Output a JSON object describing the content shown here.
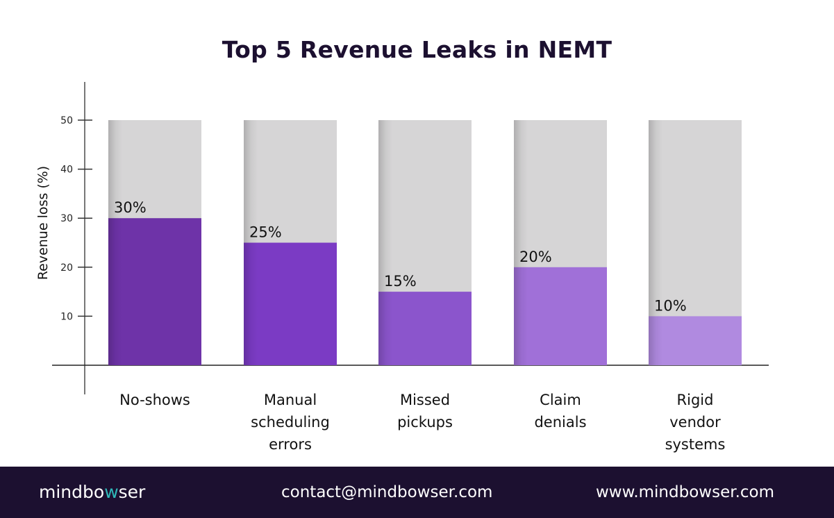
{
  "chart_data": {
    "type": "bar",
    "title": "Top 5 Revenue Leaks in NEMT",
    "xlabel": "",
    "ylabel": "Revenue loss (%)",
    "ylim": [
      0,
      50
    ],
    "yticks": [
      10,
      20,
      30,
      40,
      50
    ],
    "grid": false,
    "categories": [
      [
        "No-shows"
      ],
      [
        "Manual",
        "scheduling",
        "errors"
      ],
      [
        "Missed",
        "pickups"
      ],
      [
        "Claim",
        "denials"
      ],
      [
        "Rigid",
        "vendor",
        "systems"
      ]
    ],
    "values": [
      30,
      25,
      15,
      20,
      10
    ],
    "data_labels": [
      "30%",
      "25%",
      "15%",
      "20%",
      "10%"
    ],
    "bar_colors": [
      "#6e33a8",
      "#7b3bc4",
      "#8b55cc",
      "#a070d8",
      "#b08ae0"
    ],
    "background_bar_color": "#d6d5d6"
  },
  "footer": {
    "logo": {
      "before": "mindbo",
      "accent": "w",
      "after": "ser"
    },
    "email": "contact@mindbowser.com",
    "website": "www.mindbowser.com"
  }
}
